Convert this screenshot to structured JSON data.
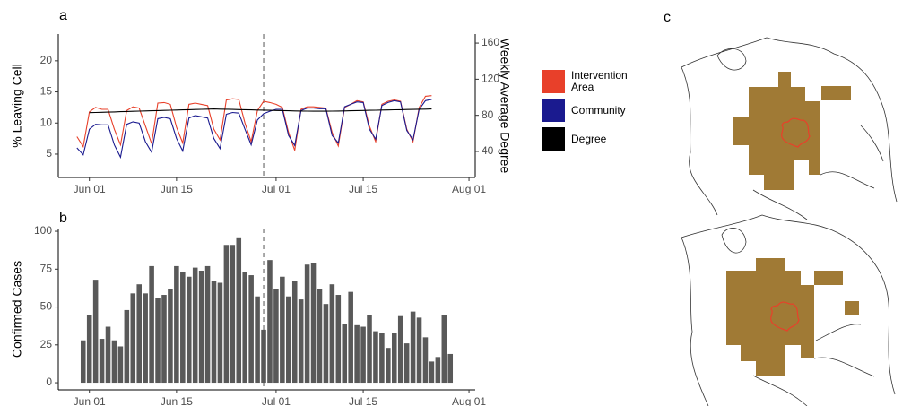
{
  "chart_data": [
    {
      "type": "line",
      "label": "a",
      "ylabel": "% Leaving Cell",
      "y2label": "Weekly Average Degree",
      "x": [
        "05-30",
        "05-31",
        "06-01",
        "06-02",
        "06-03",
        "06-04",
        "06-05",
        "06-06",
        "06-07",
        "06-08",
        "06-09",
        "06-10",
        "06-11",
        "06-12",
        "06-13",
        "06-14",
        "06-15",
        "06-16",
        "06-17",
        "06-18",
        "06-19",
        "06-20",
        "06-21",
        "06-22",
        "06-23",
        "06-24",
        "06-25",
        "06-26",
        "06-27",
        "06-28",
        "06-29",
        "06-30",
        "07-01",
        "07-02",
        "07-03",
        "07-04",
        "07-05",
        "07-06",
        "07-07",
        "07-08",
        "07-09",
        "07-10",
        "07-11",
        "07-12",
        "07-13",
        "07-14",
        "07-15",
        "07-16",
        "07-17",
        "07-18",
        "07-19",
        "07-20",
        "07-21",
        "07-22",
        "07-23",
        "07-24",
        "07-25",
        "07-26"
      ],
      "series": [
        {
          "name": "Intervention Area",
          "color": "#e8402a",
          "values": [
            7.8,
            6.2,
            11.8,
            12.5,
            12.2,
            12.2,
            9.0,
            6.5,
            12.0,
            12.6,
            12.4,
            9.5,
            6.7,
            13.2,
            13.3,
            13.0,
            9.3,
            6.8,
            13.0,
            13.2,
            13.0,
            12.8,
            9.0,
            7.3,
            13.7,
            13.9,
            13.8,
            10.0,
            7.0,
            12.0,
            13.5,
            13.3,
            13.0,
            12.5,
            8.5,
            5.6,
            12.2,
            12.6,
            12.6,
            12.5,
            12.4,
            8.5,
            6.3,
            12.5,
            13.0,
            13.6,
            13.4,
            9.5,
            7.0,
            13.0,
            13.5,
            13.7,
            13.5,
            9.0,
            7.0,
            12.5,
            14.3,
            14.4
          ]
        },
        {
          "name": "Community",
          "color": "#1a1a8f",
          "values": [
            6.0,
            4.9,
            9.0,
            9.8,
            9.7,
            9.7,
            6.5,
            4.5,
            9.8,
            10.2,
            10.0,
            7.0,
            5.3,
            10.7,
            10.9,
            10.7,
            7.5,
            5.5,
            10.8,
            11.2,
            11.0,
            10.8,
            7.5,
            5.9,
            11.4,
            11.7,
            11.6,
            9.0,
            6.5,
            10.5,
            11.5,
            11.9,
            12.2,
            12.2,
            8.0,
            6.4,
            12.0,
            12.4,
            12.4,
            12.3,
            12.3,
            8.0,
            6.8,
            12.6,
            13.0,
            13.4,
            13.3,
            9.0,
            7.4,
            12.8,
            13.3,
            13.6,
            13.4,
            8.8,
            7.3,
            12.2,
            13.6,
            13.8
          ]
        },
        {
          "name": "Degree",
          "color": "#000000",
          "axis": "y2",
          "values": [
            null,
            null,
            83.0,
            83.2,
            83.4,
            83.6,
            83.8,
            84.0,
            84.2,
            84.4,
            84.6,
            84.8,
            85.0,
            85.2,
            85.4,
            85.6,
            85.8,
            86.0,
            86.2,
            86.4,
            86.6,
            86.8,
            87.0,
            86.8,
            86.7,
            86.5,
            86.3,
            86.2,
            86.0,
            85.8,
            85.7,
            85.5,
            85.3,
            85.2,
            85.0,
            84.8,
            84.7,
            84.6,
            84.5,
            84.5,
            84.5,
            84.6,
            84.7,
            84.8,
            85.0,
            85.2,
            85.3,
            85.5,
            85.6,
            85.8,
            85.9,
            86.1,
            86.2,
            86.4,
            86.5,
            86.7,
            86.8,
            87.0
          ]
        }
      ],
      "xlim": [
        "05-27",
        "08-02"
      ],
      "xticks": [
        {
          "value": "06-01",
          "label": "Jun 01"
        },
        {
          "value": "06-15",
          "label": "Jun 15"
        },
        {
          "value": "07-01",
          "label": "Jul 01"
        },
        {
          "value": "07-15",
          "label": "Jul 15"
        },
        {
          "value": "08-01",
          "label": "Aug 01"
        }
      ],
      "ylim": [
        1.25,
        24.3
      ],
      "yticks": [
        5,
        10,
        15,
        20
      ],
      "y2lim": [
        11.2,
        170
      ],
      "y2ticks": [
        40,
        80,
        120,
        160
      ],
      "vline": "06-29",
      "legend": "right"
    },
    {
      "type": "bar",
      "label": "b",
      "ylabel": "Confirmed Cases",
      "color": "#595959",
      "x": [
        "05-31",
        "06-01",
        "06-02",
        "06-03",
        "06-04",
        "06-05",
        "06-06",
        "06-07",
        "06-08",
        "06-09",
        "06-10",
        "06-11",
        "06-12",
        "06-13",
        "06-14",
        "06-15",
        "06-16",
        "06-17",
        "06-18",
        "06-19",
        "06-20",
        "06-21",
        "06-22",
        "06-23",
        "06-24",
        "06-25",
        "06-26",
        "06-27",
        "06-28",
        "06-29",
        "06-30",
        "07-01",
        "07-02",
        "07-03",
        "07-04",
        "07-05",
        "07-06",
        "07-07",
        "07-08",
        "07-09",
        "07-10",
        "07-11",
        "07-12",
        "07-13",
        "07-14",
        "07-15",
        "07-16",
        "07-17",
        "07-18",
        "07-19",
        "07-20",
        "07-21",
        "07-22",
        "07-23",
        "07-24",
        "07-25",
        "07-26",
        "07-27",
        "07-28",
        "07-29"
      ],
      "values": [
        28,
        45,
        68,
        29,
        37,
        28,
        24,
        48,
        59,
        65,
        59,
        77,
        56,
        58,
        62,
        77,
        73,
        70,
        76,
        74,
        77,
        67,
        66,
        91,
        91,
        96,
        73,
        71,
        57,
        35,
        81,
        62,
        70,
        57,
        67,
        55,
        78,
        79,
        62,
        52,
        65,
        58,
        39,
        60,
        38,
        37,
        45,
        34,
        33,
        23,
        33,
        44,
        26,
        47,
        43,
        30,
        14,
        17,
        45,
        19
      ],
      "xlim": [
        "05-27",
        "08-02"
      ],
      "xticks": [
        {
          "value": "06-01",
          "label": "Jun 01"
        },
        {
          "value": "06-15",
          "label": "Jun 15"
        },
        {
          "value": "07-01",
          "label": "Jul 01"
        },
        {
          "value": "07-15",
          "label": "Jul 15"
        },
        {
          "value": "08-01",
          "label": "Aug 01"
        }
      ],
      "ylim": [
        -4.7,
        101.8
      ],
      "yticks": [
        0,
        25,
        50,
        75,
        100
      ],
      "vline": "06-29"
    }
  ],
  "map_panel": {
    "label": "c"
  }
}
